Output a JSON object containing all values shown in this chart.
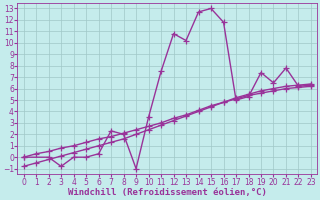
{
  "background_color": "#c5ecec",
  "grid_color": "#a0c8c8",
  "line_color": "#993399",
  "xlim": [
    -0.5,
    23.5
  ],
  "ylim": [
    -1.5,
    13.5
  ],
  "xlabel": "Windchill (Refroidissement éolien,°C)",
  "xticks": [
    0,
    1,
    2,
    3,
    4,
    5,
    6,
    7,
    8,
    9,
    10,
    11,
    12,
    13,
    14,
    15,
    16,
    17,
    18,
    19,
    20,
    21,
    22,
    23
  ],
  "yticks": [
    -1,
    0,
    1,
    2,
    3,
    4,
    5,
    6,
    7,
    8,
    9,
    10,
    11,
    12,
    13
  ],
  "series1_x": [
    0,
    1,
    2,
    3,
    4,
    5,
    6,
    7,
    8,
    9,
    10,
    11,
    12,
    13,
    14,
    15,
    16,
    17,
    18,
    19,
    20,
    21,
    22,
    23
  ],
  "series1_y": [
    0.0,
    0.3,
    0.5,
    0.8,
    1.0,
    1.3,
    1.6,
    1.8,
    2.1,
    2.4,
    2.7,
    3.0,
    3.4,
    3.7,
    4.1,
    4.5,
    4.8,
    5.1,
    5.4,
    5.6,
    5.8,
    6.0,
    6.1,
    6.2
  ],
  "series2_x": [
    0,
    1,
    2,
    3,
    4,
    5,
    6,
    7,
    8,
    9,
    10,
    11,
    12,
    13,
    14,
    15,
    16,
    17,
    18,
    19,
    20,
    21,
    22,
    23
  ],
  "series2_y": [
    -0.8,
    -0.5,
    -0.2,
    0.1,
    0.4,
    0.7,
    1.0,
    1.3,
    1.6,
    2.0,
    2.4,
    2.8,
    3.2,
    3.6,
    4.0,
    4.4,
    4.8,
    5.2,
    5.5,
    5.8,
    6.0,
    6.2,
    6.3,
    6.4
  ],
  "series3_x": [
    0,
    2,
    3,
    4,
    5,
    6,
    7,
    8,
    9,
    10,
    11,
    12,
    13,
    14,
    15,
    16,
    17,
    18,
    19,
    20,
    21,
    22,
    23
  ],
  "series3_y": [
    0.0,
    0.0,
    -0.8,
    0.0,
    0.0,
    0.3,
    2.3,
    2.0,
    -1.0,
    3.5,
    7.5,
    10.8,
    10.2,
    12.7,
    13.0,
    11.8,
    5.0,
    5.3,
    7.4,
    6.5,
    7.8,
    6.2,
    6.3
  ],
  "marker_size": 4,
  "line_width": 1.0,
  "xlabel_fontsize": 6.5,
  "tick_fontsize": 5.5
}
